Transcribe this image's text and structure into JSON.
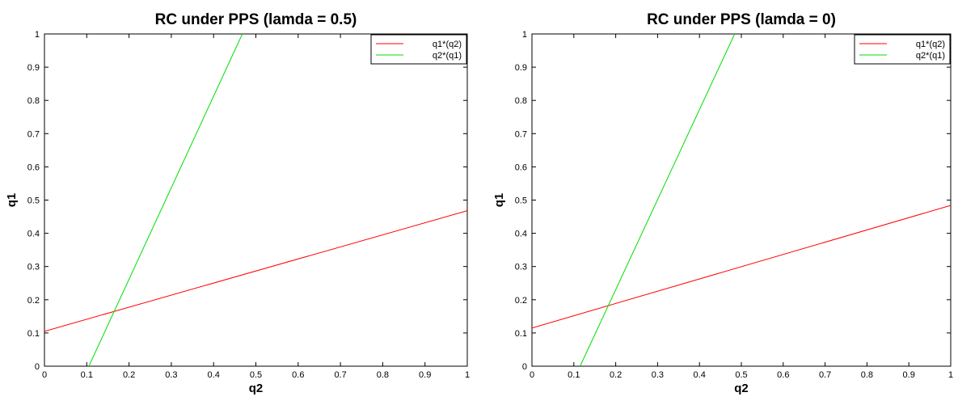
{
  "chart_data": [
    {
      "type": "line",
      "title": "RC under PPS (lamda = 0.5)",
      "xlabel": "q2",
      "ylabel": "q1",
      "xlim": [
        0,
        1
      ],
      "ylim": [
        0,
        1
      ],
      "xticks": [
        "0",
        "0.1",
        "0.2",
        "0.3",
        "0.4",
        "0.5",
        "0.6",
        "0.7",
        "0.8",
        "0.9",
        "1"
      ],
      "yticks": [
        "0",
        "0.1",
        "0.2",
        "0.3",
        "0.4",
        "0.5",
        "0.6",
        "0.7",
        "0.8",
        "0.9",
        "1"
      ],
      "grid": false,
      "legend_position": "top-right",
      "series": [
        {
          "name": "q1*(q2)",
          "color": "#ff0000",
          "x": [
            0,
            1
          ],
          "y": [
            0.105,
            0.468
          ]
        },
        {
          "name": "q2*(q1)",
          "color": "#00dd00",
          "x": [
            0.105,
            0.468
          ],
          "y": [
            0,
            1
          ]
        }
      ]
    },
    {
      "type": "line",
      "title": "RC under PPS (lamda = 0)",
      "xlabel": "q2",
      "ylabel": "q1",
      "xlim": [
        0,
        1
      ],
      "ylim": [
        0,
        1
      ],
      "xticks": [
        "0",
        "0.1",
        "0.2",
        "0.3",
        "0.4",
        "0.5",
        "0.6",
        "0.7",
        "0.8",
        "0.9",
        "1"
      ],
      "yticks": [
        "0",
        "0.1",
        "0.2",
        "0.3",
        "0.4",
        "0.5",
        "0.6",
        "0.7",
        "0.8",
        "0.9",
        "1"
      ],
      "grid": false,
      "legend_position": "top-right",
      "series": [
        {
          "name": "q1*(q2)",
          "color": "#ff0000",
          "x": [
            0,
            1
          ],
          "y": [
            0.115,
            0.484
          ]
        },
        {
          "name": "q2*(q1)",
          "color": "#00dd00",
          "x": [
            0.115,
            0.484
          ],
          "y": [
            0,
            1
          ]
        }
      ]
    }
  ]
}
